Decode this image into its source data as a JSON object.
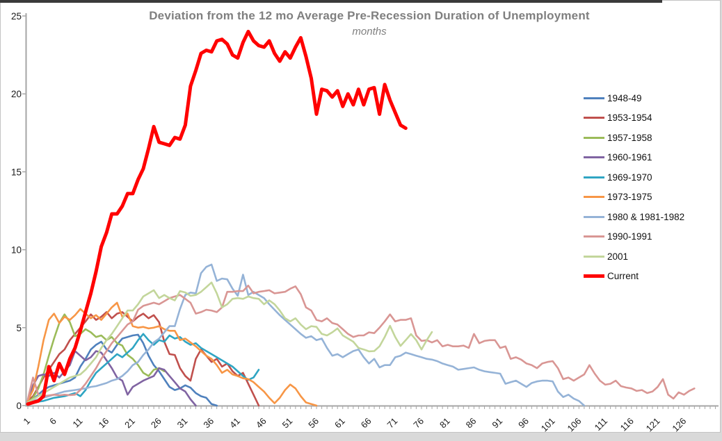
{
  "page": {
    "background": "#d9d9d9",
    "frame_border": "#c3c3c3",
    "top_bar_color": "#3a3a3a"
  },
  "chart_data": {
    "type": "line",
    "title": "Deviation from the 12 mo Average Pre-Recession Duration of Unemployment",
    "subtitle": "months",
    "xlabel": "",
    "ylabel": "",
    "x_start": 1,
    "xlim": [
      1,
      132
    ],
    "ylim": [
      0,
      25
    ],
    "grid": false,
    "legend_position": "right",
    "axis_color": "#a6a6a6",
    "label_color": "#1a1a1a",
    "title_color": "#7f7f7f",
    "y_ticks": [
      0,
      5,
      10,
      15,
      20,
      25
    ],
    "x_tick_step": 5,
    "x_tick_labels": [
      "1",
      "6",
      "11",
      "16",
      "21",
      "26",
      "31",
      "36",
      "41",
      "46",
      "51",
      "56",
      "61",
      "66",
      "71",
      "76",
      "81",
      "86",
      "91",
      "96",
      "101",
      "106",
      "111",
      "116",
      "121",
      "126"
    ],
    "series": [
      {
        "name": "1948-49",
        "color": "#4f81bd",
        "width": 2.6,
        "values": [
          0.2,
          0.4,
          0.7,
          1.0,
          1.2,
          1.3,
          1.4,
          1.5,
          1.6,
          1.8,
          2.5,
          3.0,
          3.6,
          3.9,
          4.1,
          3.6,
          3.4,
          3.9,
          4.3,
          4.4,
          4.5,
          4.55,
          4.0,
          3.2,
          2.6,
          2.2,
          1.7,
          1.2,
          1.0,
          1.1,
          1.3,
          1.15,
          0.8,
          0.6,
          0.5,
          0.1,
          0
        ]
      },
      {
        "name": "1953-1954",
        "color": "#c0504d",
        "width": 2.6,
        "values": [
          0.3,
          0.6,
          1.2,
          1.8,
          2.3,
          2.8,
          3.3,
          3.6,
          4.2,
          4.6,
          5.0,
          5.4,
          5.85,
          5.5,
          5.7,
          6.0,
          5.6,
          5.9,
          6.0,
          5.7,
          5.4,
          5.7,
          5.9,
          5.6,
          5.8,
          5.35,
          4.1,
          3.3,
          3.25,
          2.4,
          1.9,
          1.6,
          3.0,
          3.6,
          3.2,
          2.8,
          3.0,
          2.5,
          2.7,
          2.2,
          1.9,
          2.1,
          1.4,
          0.7,
          0
        ]
      },
      {
        "name": "1957-1958",
        "color": "#9bbb59",
        "width": 2.6,
        "values": [
          0.2,
          0.5,
          1.1,
          2.0,
          3.2,
          4.3,
          5.3,
          5.85,
          5.35,
          4.45,
          4.6,
          4.9,
          4.7,
          4.4,
          4.5,
          4.2,
          4.4,
          4.0,
          3.85,
          3.25,
          3.0,
          2.6,
          2.1,
          1.9,
          2.3,
          2.4,
          2.2
        ]
      },
      {
        "name": "1960-1961",
        "color": "#8064a2",
        "width": 2.6,
        "values": [
          0.3,
          1.3,
          1.9,
          2.0,
          1.9,
          2.1,
          1.8,
          2.2,
          2.6,
          3.5,
          3.2,
          2.9,
          3.1,
          3.5,
          3.4,
          2.9,
          2.4,
          1.8,
          1.6,
          0.7,
          1.2,
          1.4,
          1.6,
          1.75,
          1.9,
          2.4,
          2.3,
          1.9,
          1.5,
          1.1,
          0.9,
          0.4,
          0
        ]
      },
      {
        "name": "1969-1970",
        "color": "#2fa5c3",
        "width": 2.6,
        "values": [
          0.15,
          0.2,
          0.25,
          0.3,
          0.4,
          0.5,
          0.55,
          0.6,
          0.7,
          0.8,
          0.6,
          1.0,
          1.6,
          2.1,
          2.4,
          2.7,
          3.0,
          3.3,
          3.1,
          3.4,
          3.7,
          4.2,
          4.6,
          4.2,
          3.9,
          4.2,
          4.1,
          4.5,
          4.3,
          4.4,
          4.1,
          3.9,
          4.0,
          3.7,
          3.5,
          3.3,
          3.1,
          2.9,
          2.7,
          2.5,
          2.2,
          1.9,
          1.65,
          1.8,
          2.3
        ]
      },
      {
        "name": "1973-1975",
        "color": "#f79646",
        "width": 2.6,
        "values": [
          0.3,
          1.0,
          2.5,
          4.2,
          5.5,
          5.9,
          5.3,
          5.7,
          5.5,
          5.8,
          6.2,
          5.9,
          5.6,
          5.8,
          5.5,
          5.9,
          6.3,
          6.6,
          5.7,
          5.9,
          5.1,
          5.0,
          5.05,
          4.95,
          5.0,
          5.1,
          4.9,
          4.8,
          4.8,
          4.2,
          4.3,
          4.05,
          3.8,
          3.5,
          3.2,
          3.0,
          2.6,
          2.1,
          2.3,
          2.0,
          1.9,
          1.75,
          1.7,
          1.5,
          1.2,
          0.9,
          0.5,
          0.15,
          0.5,
          1.0,
          1.35,
          1.1,
          0.6,
          0.2,
          0.1,
          0
        ]
      },
      {
        "name": "1980 & 1981-1982",
        "color": "#95b3d7",
        "width": 2.6,
        "values": [
          0.2,
          0.3,
          0.4,
          0.5,
          0.6,
          0.7,
          0.8,
          0.9,
          0.95,
          1.0,
          1.05,
          1.1,
          1.2,
          1.25,
          1.35,
          1.45,
          1.6,
          1.7,
          1.9,
          2.2,
          2.6,
          2.8,
          3.25,
          3.6,
          4.06,
          4.3,
          4.7,
          5.1,
          5.1,
          6.2,
          7.1,
          7.25,
          7.2,
          8.5,
          8.9,
          9.05,
          8.0,
          8.15,
          8.1,
          7.5,
          7.05,
          8.4,
          7.1,
          7.3,
          7.1,
          6.9,
          6.5,
          6.15,
          5.8,
          5.5,
          5.2,
          4.9,
          4.6,
          4.35,
          4.45,
          4.2,
          4.3,
          3.7,
          3.2,
          3.3,
          3.1,
          3.3,
          3.5,
          3.6,
          3.1,
          2.7,
          3.0,
          2.45,
          2.6,
          2.6,
          3.1,
          3.2,
          3.4,
          3.3,
          3.2,
          3.1,
          3.0,
          2.95,
          2.85,
          2.7,
          2.6,
          2.5,
          2.3,
          2.35,
          2.4,
          2.45,
          2.3,
          2.2,
          2.15,
          2.1,
          2.05,
          1.4,
          1.5,
          1.6,
          1.4,
          1.2,
          1.45,
          1.55,
          1.6,
          1.6,
          1.55,
          0.9,
          0.55,
          0.7,
          0.45,
          0.3,
          0
        ]
      },
      {
        "name": "1990-1991",
        "color": "#d99694",
        "width": 2.6,
        "values": [
          0.4,
          1.8,
          0.7,
          0.6,
          0.65,
          0.7,
          0.65,
          0.7,
          0.67,
          0.7,
          1.0,
          1.4,
          1.9,
          2.4,
          3.0,
          3.5,
          4.0,
          4.4,
          4.8,
          5.2,
          5.4,
          6.15,
          6.4,
          6.5,
          6.6,
          6.5,
          6.7,
          6.9,
          7.0,
          7.1,
          6.85,
          6.6,
          5.9,
          6.0,
          6.15,
          6.1,
          6.0,
          6.3,
          7.3,
          7.3,
          7.35,
          7.35,
          7.7,
          7.2,
          7.3,
          7.35,
          7.4,
          7.2,
          7.25,
          7.3,
          7.5,
          7.65,
          7.15,
          6.3,
          6.1,
          5.5,
          5.4,
          5.6,
          5.3,
          5.2,
          4.9,
          4.6,
          4.4,
          4.5,
          4.5,
          4.7,
          4.65,
          5.0,
          5.4,
          5.85,
          5.4,
          5.5,
          5.5,
          5.6,
          4.5,
          4.15,
          4.2,
          4.05,
          4.2,
          3.8,
          3.9,
          3.8,
          3.8,
          3.85,
          3.7,
          4.6,
          4.0,
          4.15,
          4.2,
          4.2,
          3.7,
          3.8,
          3.0,
          3.1,
          2.95,
          2.7,
          2.6,
          2.4,
          2.7,
          2.8,
          2.85,
          2.4,
          1.7,
          1.8,
          1.6,
          1.8,
          2.0,
          2.6,
          2.05,
          1.6,
          1.34,
          1.4,
          1.6,
          1.25,
          1.16,
          1.1,
          0.94,
          1.0,
          0.8,
          0.9,
          1.2,
          1.7,
          0.7,
          0.45,
          0.85,
          0.7,
          0.94,
          1.1
        ]
      },
      {
        "name": "2001",
        "color": "#c3d69b",
        "width": 2.6,
        "values": [
          0.2,
          0.4,
          0.6,
          0.8,
          1.0,
          1.2,
          1.4,
          1.6,
          1.8,
          1.9,
          2.0,
          2.3,
          2.7,
          3.1,
          3.7,
          4.2,
          4.6,
          5.1,
          5.6,
          6.1,
          6.1,
          6.5,
          7.0,
          7.2,
          7.4,
          6.9,
          7.1,
          6.9,
          6.75,
          7.35,
          7.26,
          7.04,
          7.1,
          7.3,
          7.6,
          7.9,
          7.2,
          6.3,
          6.5,
          6.85,
          6.9,
          6.85,
          7.0,
          6.9,
          6.85,
          6.5,
          6.75,
          6.5,
          6.1,
          5.6,
          5.4,
          5.6,
          5.2,
          4.9,
          5.1,
          5.05,
          4.6,
          4.5,
          4.7,
          4.95,
          4.5,
          4.3,
          4.1,
          3.7,
          3.6,
          3.48,
          3.5,
          3.8,
          4.4,
          5.12,
          4.4,
          3.83,
          4.2,
          4.59,
          4.2,
          3.6,
          4.2,
          4.72
        ]
      },
      {
        "name": "Current",
        "color": "#ff0000",
        "width": 5,
        "values": [
          0.1,
          0.2,
          0.3,
          0.6,
          2.5,
          1.6,
          2.7,
          2.0,
          3.0,
          3.7,
          4.8,
          6.0,
          7.2,
          8.6,
          10.2,
          11.1,
          12.3,
          12.3,
          12.8,
          13.6,
          13.6,
          14.5,
          15.2,
          16.5,
          17.9,
          16.9,
          16.8,
          16.7,
          17.2,
          17.1,
          18.0,
          20.5,
          21.5,
          22.6,
          22.8,
          22.7,
          23.4,
          23.5,
          23.2,
          22.5,
          22.3,
          23.3,
          24.0,
          23.4,
          23.1,
          23.0,
          23.4,
          22.6,
          22.1,
          22.7,
          22.3,
          23.0,
          23.6,
          22.4,
          21.0,
          18.7,
          20.3,
          20.2,
          19.8,
          20.2,
          19.2,
          20.0,
          19.3,
          20.3,
          19.3,
          20.3,
          20.4,
          18.7,
          20.6,
          19.6,
          18.8,
          18.0,
          17.8
        ]
      }
    ]
  }
}
